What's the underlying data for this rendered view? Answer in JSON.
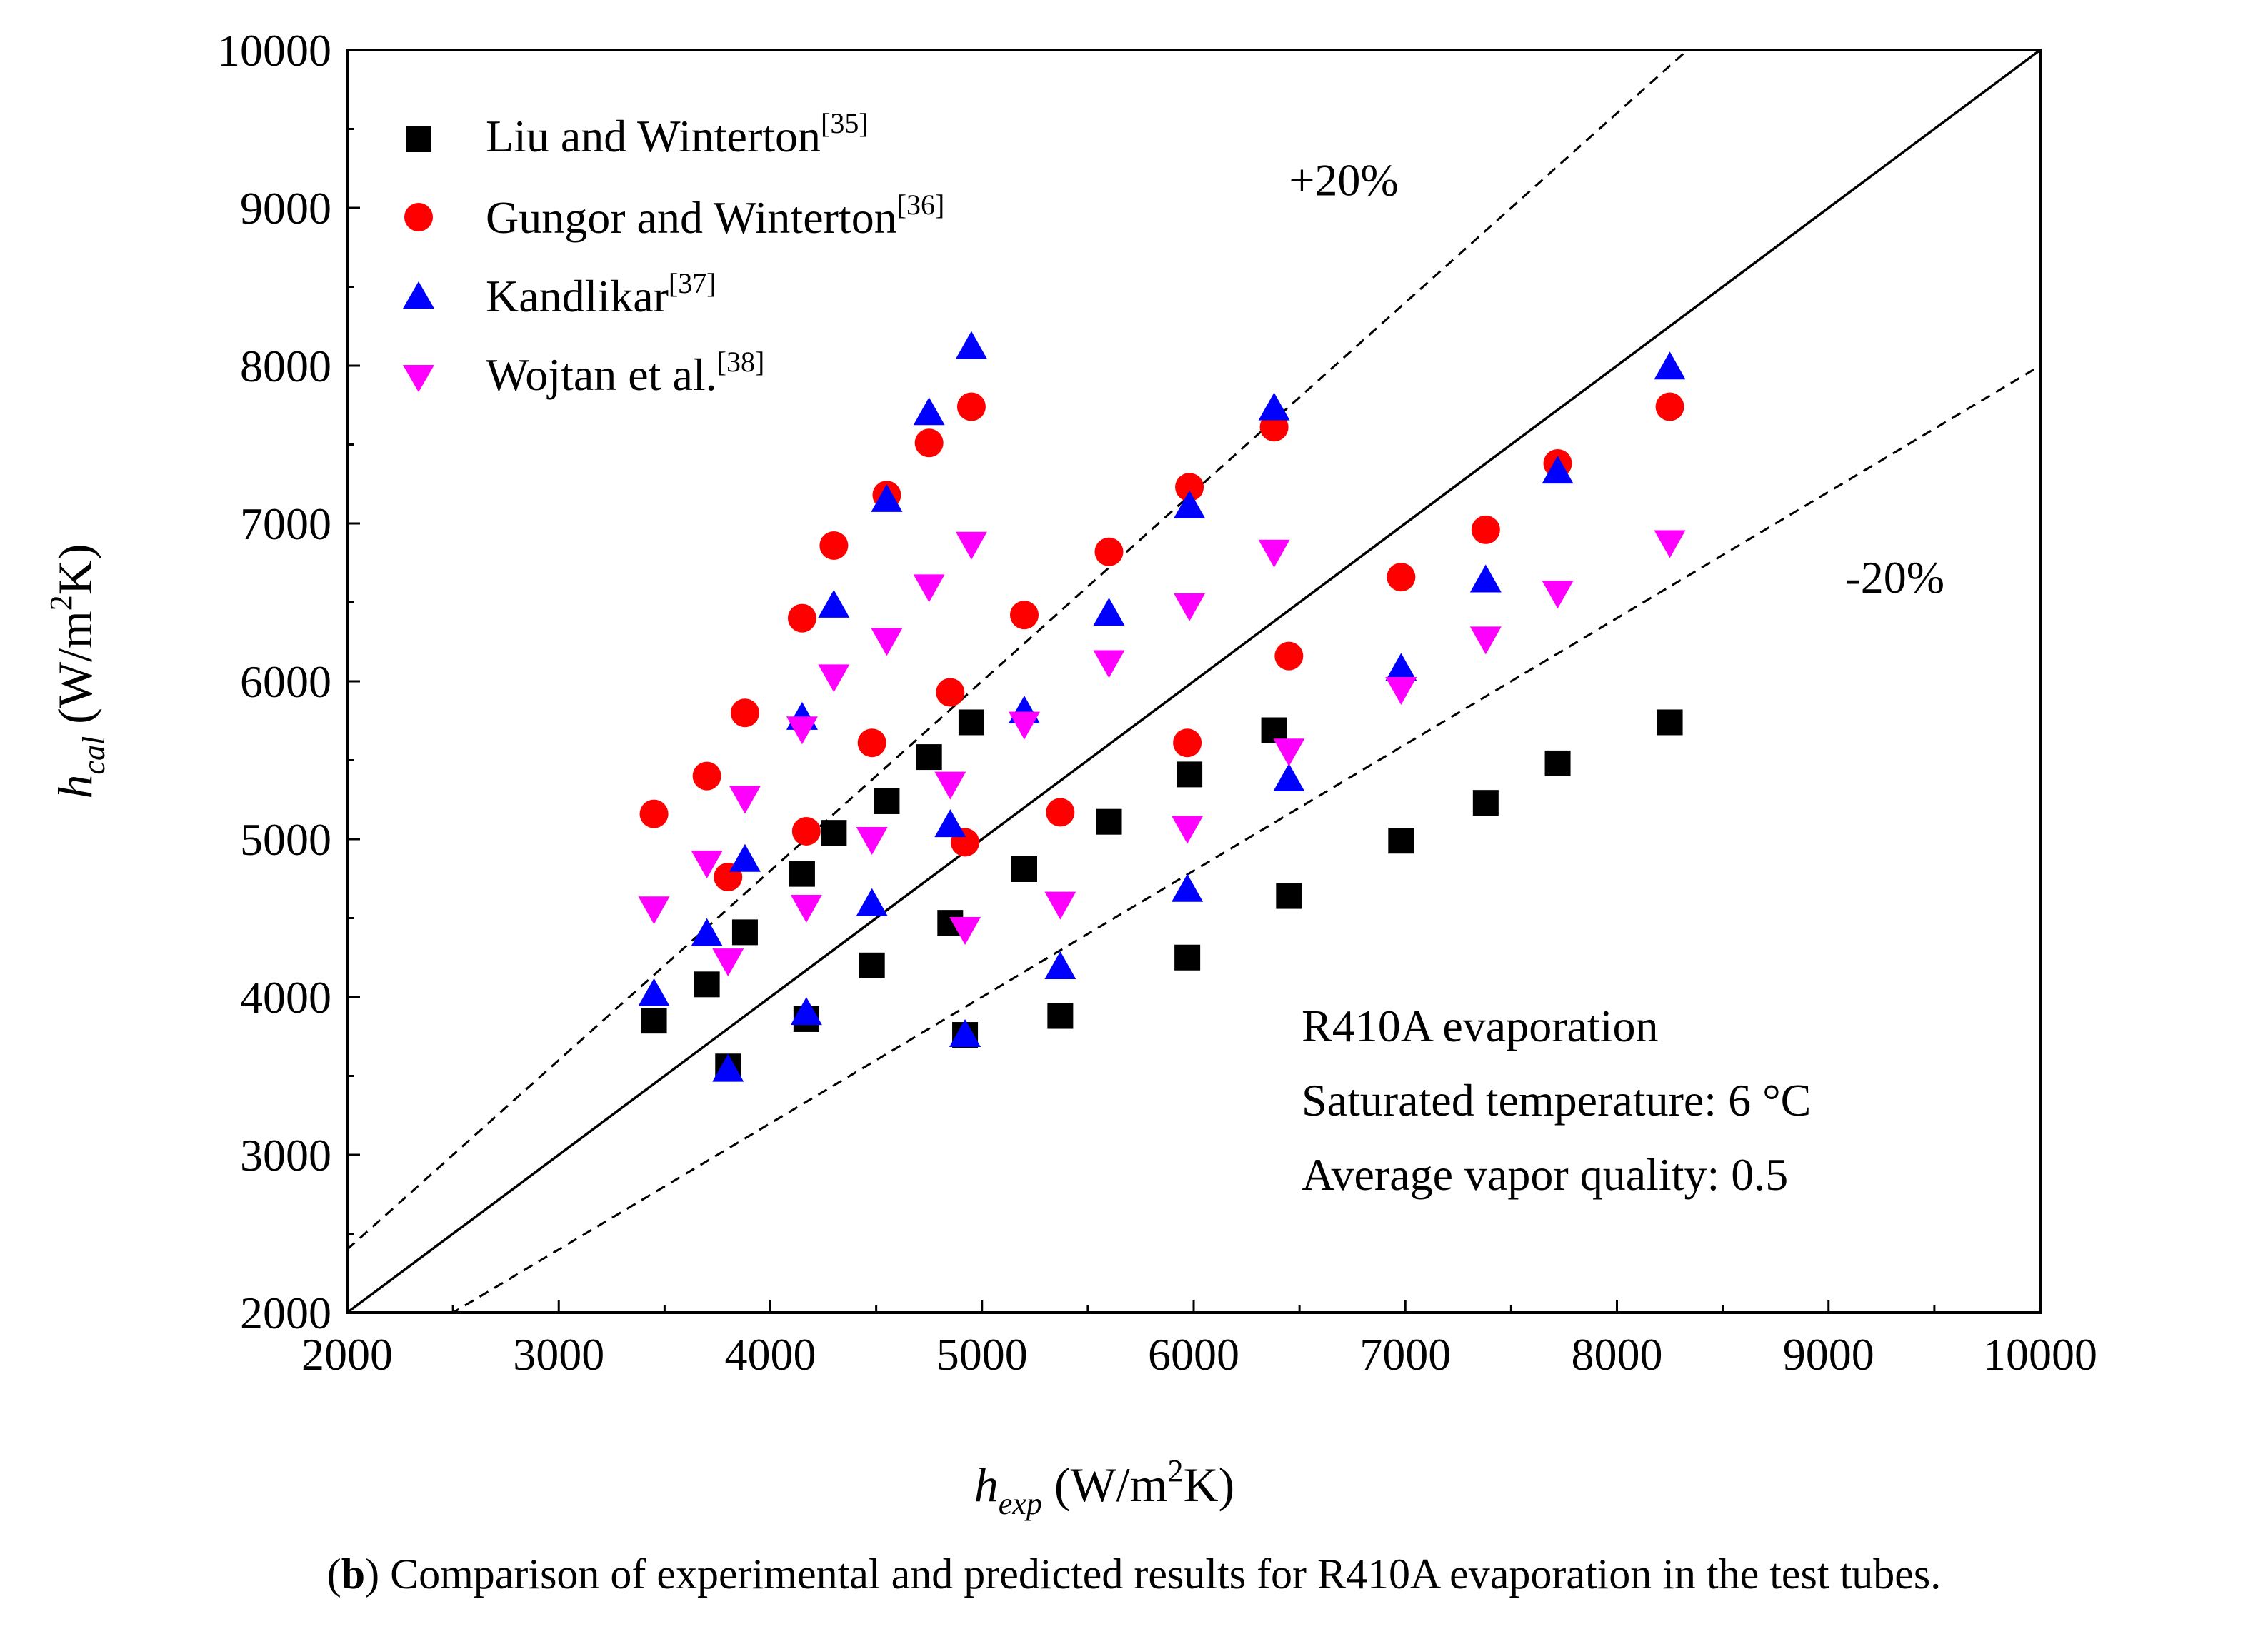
{
  "chart_data": {
    "type": "scatter",
    "xlabel": "h_exp (W/m²K)",
    "ylabel": "h_cal (W/m²K)",
    "xlabel_parts": {
      "symbol": "h",
      "sub": "exp",
      "unit_pre": "(W/m",
      "sup": "2",
      "unit_post": "K)"
    },
    "ylabel_parts": {
      "symbol": "h",
      "sub": "cal",
      "unit_pre": "(W/m",
      "sup": "2",
      "unit_post": "K)"
    },
    "xlim": [
      2000,
      10000
    ],
    "ylim": [
      2000,
      10000
    ],
    "xticks": [
      2000,
      3000,
      4000,
      5000,
      6000,
      7000,
      8000,
      9000,
      10000
    ],
    "yticks": [
      2000,
      3000,
      4000,
      5000,
      6000,
      7000,
      8000,
      9000,
      10000
    ],
    "grid": false,
    "legend_position": "top-left",
    "reference_lines": [
      {
        "name": "y = x",
        "slope": 1.0,
        "style": "solid"
      },
      {
        "name": "+20%",
        "slope": 1.2,
        "style": "dashed",
        "label": "+20%"
      },
      {
        "name": "-20%",
        "slope": 0.8,
        "style": "dashed",
        "label": "-20%"
      }
    ],
    "series": [
      {
        "name": "Liu and Winterton",
        "ref": "[35]",
        "marker": "square",
        "color": "#000000",
        "x": [
          3450,
          3700,
          3800,
          3880,
          4150,
          4170,
          4300,
          4480,
          4550,
          4750,
          4850,
          4920,
          4950,
          5200,
          5370,
          5600,
          5970,
          5980,
          6380,
          6450,
          6980,
          7380,
          7720,
          8250
        ],
        "y": [
          3850,
          4080,
          3560,
          4410,
          4780,
          3860,
          5040,
          4200,
          5240,
          5520,
          4470,
          3760,
          5740,
          4810,
          3880,
          5110,
          4250,
          5410,
          5690,
          4640,
          4990,
          5230,
          5480,
          5740
        ]
      },
      {
        "name": "Gungor and Winterton",
        "ref": "[36]",
        "marker": "circle",
        "color": "#ff0000",
        "x": [
          3450,
          3700,
          3800,
          3880,
          4150,
          4170,
          4300,
          4480,
          4550,
          4750,
          4850,
          4920,
          4950,
          5200,
          5370,
          5600,
          5970,
          5980,
          6380,
          6450,
          6980,
          7380,
          7720,
          8250
        ],
        "y": [
          5160,
          5400,
          4760,
          5800,
          6400,
          5050,
          6860,
          5610,
          7180,
          7510,
          5930,
          4980,
          7740,
          6420,
          5170,
          6820,
          5610,
          7230,
          7610,
          6160,
          6660,
          6960,
          7380,
          7740
        ]
      },
      {
        "name": "Kandlikar",
        "ref": "[37]",
        "marker": "triangle-up",
        "color": "#0000ff",
        "x": [
          3450,
          3700,
          3800,
          3880,
          4150,
          4170,
          4300,
          4480,
          4550,
          4750,
          4850,
          4920,
          4950,
          5200,
          5370,
          5600,
          5970,
          5980,
          6380,
          6450,
          6980,
          7380,
          7720,
          8250
        ],
        "y": [
          4020,
          4400,
          3540,
          4870,
          5770,
          3900,
          6480,
          4590,
          7150,
          7700,
          5090,
          3760,
          8120,
          5810,
          4190,
          6430,
          4680,
          7110,
          7730,
          5380,
          6080,
          6640,
          7330,
          7990
        ]
      },
      {
        "name": "Wojtan et al.",
        "ref": "[38]",
        "marker": "triangle-down",
        "color": "#ff00ff",
        "x": [
          3450,
          3700,
          3800,
          3880,
          4150,
          4170,
          4300,
          4480,
          4550,
          4750,
          4850,
          4920,
          4950,
          5200,
          5370,
          5600,
          5970,
          5980,
          6380,
          6450,
          6980,
          7380,
          7720,
          8250
        ],
        "y": [
          4560,
          4850,
          4230,
          5260,
          5700,
          4570,
          6030,
          5000,
          6260,
          6600,
          5350,
          4430,
          6870,
          5730,
          4590,
          6120,
          5070,
          6480,
          6820,
          5560,
          5950,
          6270,
          6560,
          6880
        ]
      }
    ],
    "annotations": [
      "R410A evaporation",
      "Saturated temperature: 6 °C",
      "Average vapor quality: 0.5"
    ]
  },
  "caption": {
    "label": "b",
    "open": "(",
    "close": ")",
    "text": " Comparison of experimental and predicted results for R410A evaporation in the test tubes."
  }
}
